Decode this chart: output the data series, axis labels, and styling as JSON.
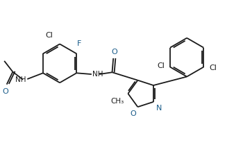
{
  "bg_color": "#ffffff",
  "line_color": "#1a1a1a",
  "text_color": "#1a1a1a",
  "heteroatom_color": "#1a5c8a",
  "lw": 1.3,
  "figsize": [
    3.5,
    2.35
  ],
  "dpi": 100,
  "xlim": [
    0,
    10
  ],
  "ylim": [
    0,
    6.7
  ]
}
